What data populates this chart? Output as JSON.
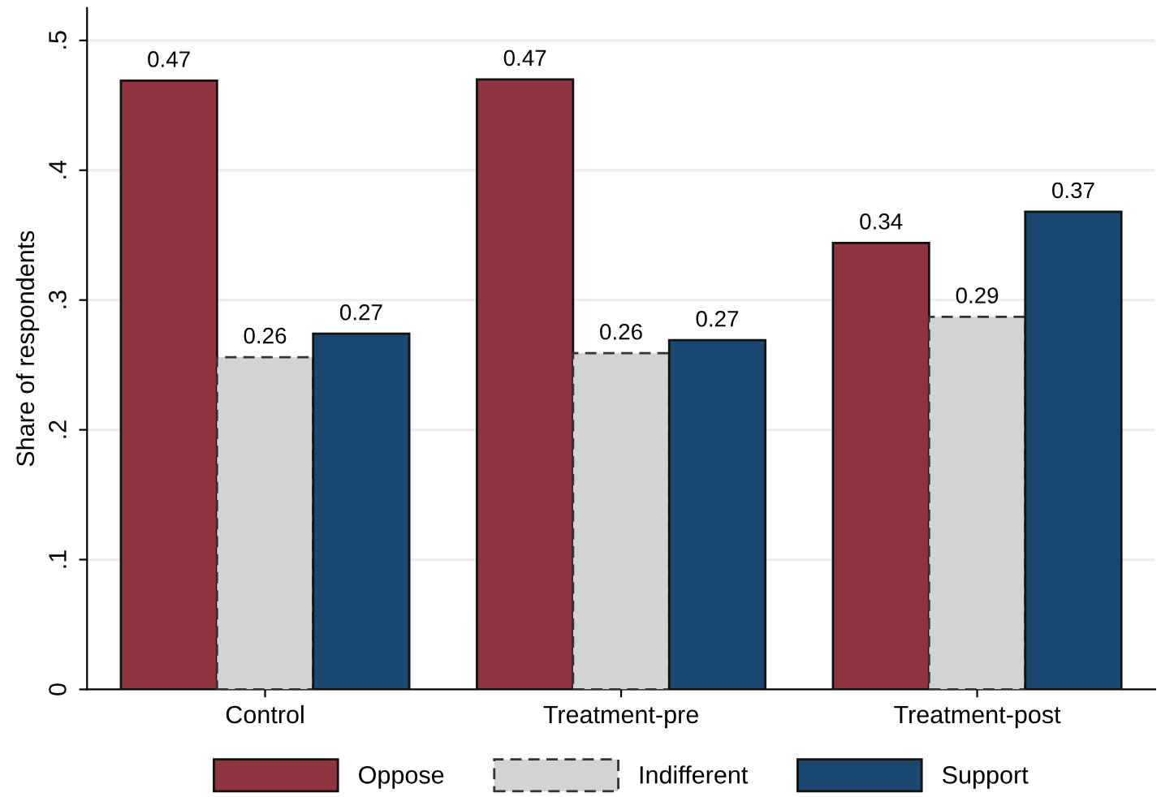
{
  "chart_data": {
    "type": "bar",
    "ylabel": "Share of respondents",
    "categories": [
      "Control",
      "Treatment-pre",
      "Treatment-post"
    ],
    "series": [
      {
        "name": "Oppose",
        "color": "#8f3540",
        "values": [
          0.469,
          0.47,
          0.344
        ],
        "value_labels": [
          "0.47",
          "0.47",
          "0.34"
        ]
      },
      {
        "name": "Indifferent",
        "color": "#d3d3d3",
        "values": [
          0.256,
          0.259,
          0.287
        ],
        "value_labels": [
          "0.26",
          "0.26",
          "0.29"
        ],
        "line_style": "dashed"
      },
      {
        "name": "Support",
        "color": "#1a4670",
        "values": [
          0.274,
          0.269,
          0.368
        ],
        "value_labels": [
          "0.27",
          "0.27",
          "0.37"
        ]
      }
    ],
    "ylim": [
      0,
      0.525
    ],
    "yticks": [
      {
        "value": 0,
        "label": "0"
      },
      {
        "value": 0.1,
        "label": ".1"
      },
      {
        "value": 0.2,
        "label": ".2"
      },
      {
        "value": 0.3,
        "label": ".3"
      },
      {
        "value": 0.4,
        "label": ".4"
      },
      {
        "value": 0.5,
        "label": ".5"
      }
    ],
    "grid": "y",
    "legend": "bottom"
  }
}
